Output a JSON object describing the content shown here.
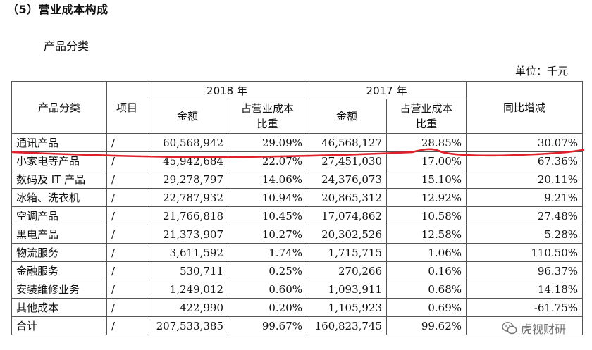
{
  "section_title": "（5）营业成本构成",
  "subtitle": "产品分类",
  "unit": "单位：千元",
  "table": {
    "header": {
      "category": "产品分类",
      "item": "项目",
      "year_2018": "2018 年",
      "year_2017": "2017 年",
      "amount": "金额",
      "share_line1": "占营业成本",
      "share_line2": "比重",
      "yoy": "同比增减"
    },
    "rows": [
      {
        "category": "通讯产品",
        "item": "/",
        "amount_2018": "60,568,942",
        "share_2018": "29.09%",
        "amount_2017": "46,568,127",
        "share_2017": "28.85%",
        "yoy": "30.07%"
      },
      {
        "category": "小家电等产品",
        "item": "/",
        "amount_2018": "45,942,684",
        "share_2018": "22.07%",
        "amount_2017": "27,451,030",
        "share_2017": "17.00%",
        "yoy": "67.36%"
      },
      {
        "category": "数码及 IT 产品",
        "item": "/",
        "amount_2018": "29,278,797",
        "share_2018": "14.06%",
        "amount_2017": "24,376,073",
        "share_2017": "15.10%",
        "yoy": "20.11%"
      },
      {
        "category": "冰箱、洗衣机",
        "item": "/",
        "amount_2018": "22,787,932",
        "share_2018": "10.94%",
        "amount_2017": "20,865,312",
        "share_2017": "12.92%",
        "yoy": "9.21%"
      },
      {
        "category": "空调产品",
        "item": "/",
        "amount_2018": "21,766,818",
        "share_2018": "10.45%",
        "amount_2017": "17,074,862",
        "share_2017": "10.58%",
        "yoy": "27.48%"
      },
      {
        "category": "黑电产品",
        "item": "/",
        "amount_2018": "21,373,907",
        "share_2018": "10.27%",
        "amount_2017": "20,302,526",
        "share_2017": "12.58%",
        "yoy": "5.28%"
      },
      {
        "category": "物流服务",
        "item": "/",
        "amount_2018": "3,611,592",
        "share_2018": "1.74%",
        "amount_2017": "1,715,715",
        "share_2017": "1.06%",
        "yoy": "110.50%"
      },
      {
        "category": "金融服务",
        "item": "/",
        "amount_2018": "530,711",
        "share_2018": "0.25%",
        "amount_2017": "270,266",
        "share_2017": "0.16%",
        "yoy": "96.37%"
      },
      {
        "category": "安装维修业务",
        "item": "/",
        "amount_2018": "1,249,012",
        "share_2018": "0.60%",
        "amount_2017": "1,093,911",
        "share_2017": "0.68%",
        "yoy": "14.18%"
      },
      {
        "category": "其他成本",
        "item": "/",
        "amount_2018": "422,990",
        "share_2018": "0.20%",
        "amount_2017": "1,105,923",
        "share_2017": "0.69%",
        "yoy": "-61.75%"
      },
      {
        "category": "合计",
        "item": "/",
        "amount_2018": "207,533,385",
        "share_2018": "99.67%",
        "amount_2017": "160,823,745",
        "share_2017": "99.62%",
        "yoy": ""
      }
    ]
  },
  "watermark": {
    "text": "虎视财研",
    "icon": "wechat-icon"
  },
  "colors": {
    "annotation_line": "#e0202a",
    "border": "#555555"
  }
}
